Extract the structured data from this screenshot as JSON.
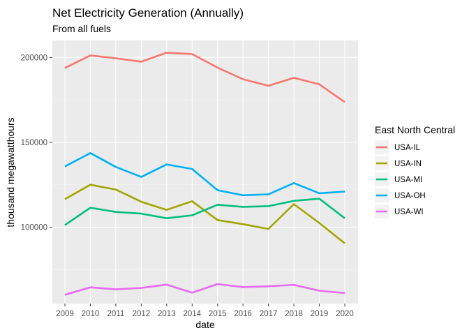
{
  "chart_data": {
    "type": "line",
    "title": "Net Electricity Generation (Annually)",
    "subtitle": "From all fuels",
    "xlabel": "date",
    "ylabel": "thousand megawatthours",
    "x": [
      "2009",
      "2010",
      "2011",
      "2012",
      "2013",
      "2014",
      "2015",
      "2016",
      "2017",
      "2018",
      "2019",
      "2020"
    ],
    "yticks": [
      100000,
      150000,
      200000
    ],
    "ytick_labels": [
      "100000",
      "150000",
      "200000"
    ],
    "ylim": [
      55000,
      210000
    ],
    "grid": true,
    "legend_position": "right",
    "legend_title": "East North Central",
    "series": [
      {
        "name": "USA-IL",
        "color": "#F8766D",
        "values": [
          193800,
          201200,
          199500,
          197500,
          202800,
          202000,
          194000,
          187200,
          183300,
          188000,
          184200,
          173700
        ]
      },
      {
        "name": "USA-IN",
        "color": "#A3A500",
        "values": [
          116500,
          125000,
          122200,
          115000,
          110200,
          115300,
          104200,
          101800,
          99000,
          113600,
          102500,
          90500
        ]
      },
      {
        "name": "USA-MI",
        "color": "#00BF7D",
        "values": [
          101300,
          111500,
          109000,
          108000,
          105300,
          107000,
          113200,
          112000,
          112400,
          115500,
          116800,
          105300
        ]
      },
      {
        "name": "USA-OH",
        "color": "#00B0F6",
        "values": [
          135800,
          143700,
          135500,
          129600,
          137000,
          134300,
          121800,
          118800,
          119400,
          126000,
          120000,
          121000
        ]
      },
      {
        "name": "USA-WI",
        "color": "#E76BF3",
        "values": [
          60200,
          64600,
          63400,
          64200,
          66200,
          61400,
          66500,
          64700,
          65200,
          66000,
          62600,
          61200
        ]
      }
    ]
  }
}
